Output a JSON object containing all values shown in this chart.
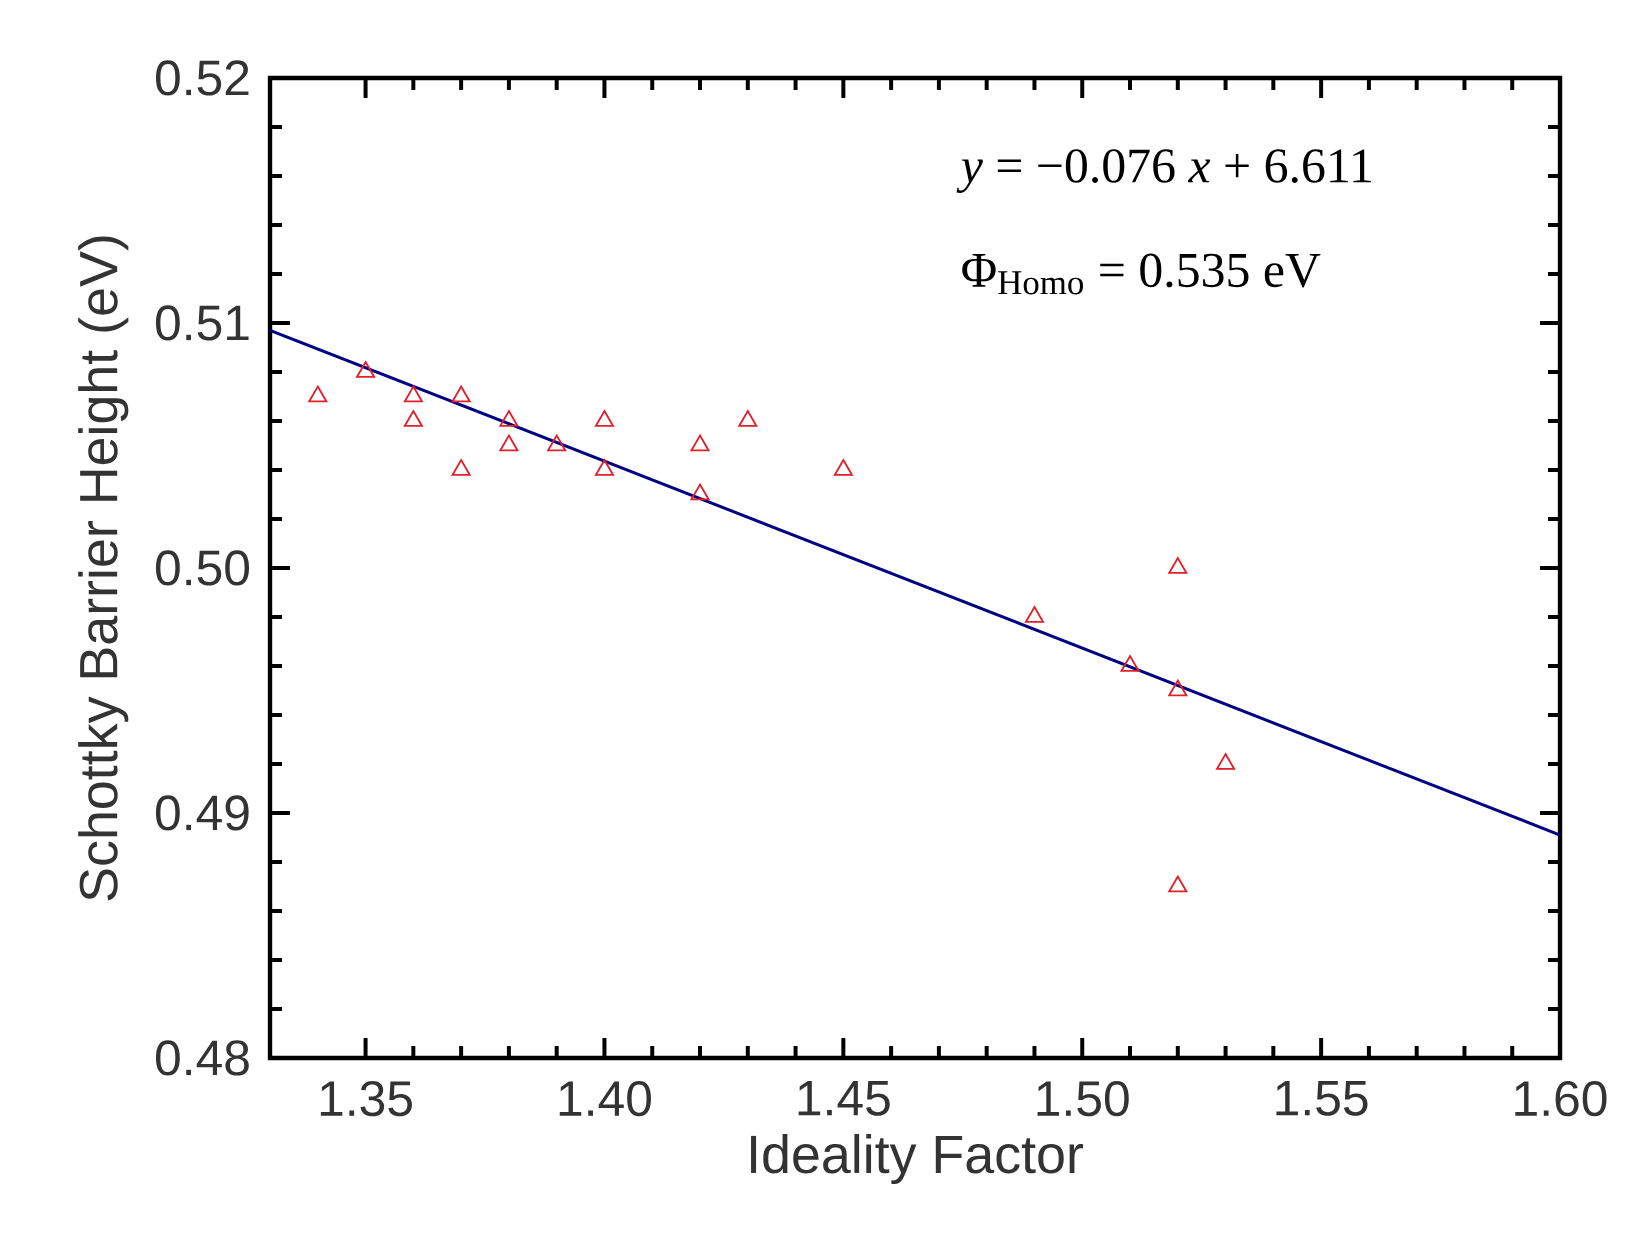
{
  "chart_data": {
    "type": "scatter",
    "xlabel": "Ideality Factor",
    "ylabel": "Schottky Barrier Height (eV)",
    "xlim": [
      1.33,
      1.6
    ],
    "ylim": [
      0.48,
      0.52
    ],
    "xticks": [
      1.35,
      {
        "value": 1.4,
        "label": "1.40"
      },
      1.45,
      {
        "value": 1.5,
        "label": "1.50"
      },
      1.55,
      {
        "value": 1.6,
        "label": "1.60"
      }
    ],
    "yticks": [
      0.48,
      0.49,
      {
        "value": 0.5,
        "label": "0.50"
      },
      0.51,
      0.52
    ],
    "grid": false,
    "annotations": [
      "*y* = −0.076 *x* + 6.611",
      "Φ$_{Homo}$ = 0.535 eV"
    ],
    "series": [
      {
        "marker": "triangle",
        "color": "#e0202a",
        "x": [
          1.34,
          1.35,
          1.36,
          1.36,
          1.37,
          1.37,
          1.38,
          1.38,
          1.39,
          1.4,
          1.4,
          1.42,
          1.42,
          1.43,
          1.45,
          1.49,
          1.51,
          1.52,
          1.52,
          1.52,
          1.53
        ],
        "values": [
          0.507,
          0.508,
          0.507,
          0.506,
          0.507,
          0.504,
          0.506,
          0.505,
          0.505,
          0.506,
          0.504,
          0.505,
          0.503,
          0.506,
          0.504,
          0.498,
          0.496,
          0.5,
          0.495,
          0.487,
          0.492
        ]
      },
      {
        "type": "line",
        "marker": "none",
        "line_style": "solid",
        "color": "#000080",
        "x": [
          1.33,
          1.6
        ],
        "values": [
          0.5097,
          0.4891
        ]
      }
    ]
  }
}
